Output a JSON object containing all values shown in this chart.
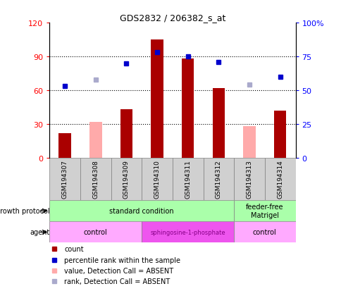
{
  "title": "GDS2832 / 206382_s_at",
  "samples": [
    "GSM194307",
    "GSM194308",
    "GSM194309",
    "GSM194310",
    "GSM194311",
    "GSM194312",
    "GSM194313",
    "GSM194314"
  ],
  "count_values": [
    22,
    null,
    43,
    105,
    88,
    62,
    null,
    42
  ],
  "count_absent_values": [
    null,
    32,
    null,
    null,
    null,
    null,
    28,
    null
  ],
  "rank_values": [
    53,
    null,
    70,
    78,
    75,
    71,
    null,
    60
  ],
  "rank_absent_values": [
    null,
    58,
    null,
    null,
    null,
    null,
    54,
    null
  ],
  "ylim_left": [
    0,
    120
  ],
  "ylim_right": [
    0,
    100
  ],
  "yticks_left": [
    0,
    30,
    60,
    90,
    120
  ],
  "yticks_right": [
    0,
    25,
    50,
    75,
    100
  ],
  "yticklabels_left": [
    "0",
    "30",
    "60",
    "90",
    "120"
  ],
  "yticklabels_right": [
    "0",
    "25",
    "50",
    "75",
    "100%"
  ],
  "bar_color": "#aa0000",
  "bar_absent_color": "#ffaaaa",
  "rank_color": "#0000cc",
  "rank_absent_color": "#aaaacc",
  "growth_protocol_label": "growth protocol",
  "agent_label": "agent",
  "growth_conditions": [
    {
      "label": "standard condition",
      "start": 0,
      "end": 6,
      "color": "#aaffaa"
    },
    {
      "label": "feeder-free\nMatrigel",
      "start": 6,
      "end": 8,
      "color": "#aaffaa"
    }
  ],
  "agent_conditions": [
    {
      "label": "control",
      "start": 0,
      "end": 3,
      "color": "#ffaaff"
    },
    {
      "label": "sphingosine-1-phosphate",
      "start": 3,
      "end": 6,
      "color": "#ee55ee"
    },
    {
      "label": "control",
      "start": 6,
      "end": 8,
      "color": "#ffaaff"
    }
  ],
  "legend_items": [
    {
      "label": "count",
      "color": "#aa0000"
    },
    {
      "label": "percentile rank within the sample",
      "color": "#0000cc"
    },
    {
      "label": "value, Detection Call = ABSENT",
      "color": "#ffaaaa"
    },
    {
      "label": "rank, Detection Call = ABSENT",
      "color": "#aaaacc"
    }
  ],
  "bar_width": 0.4
}
